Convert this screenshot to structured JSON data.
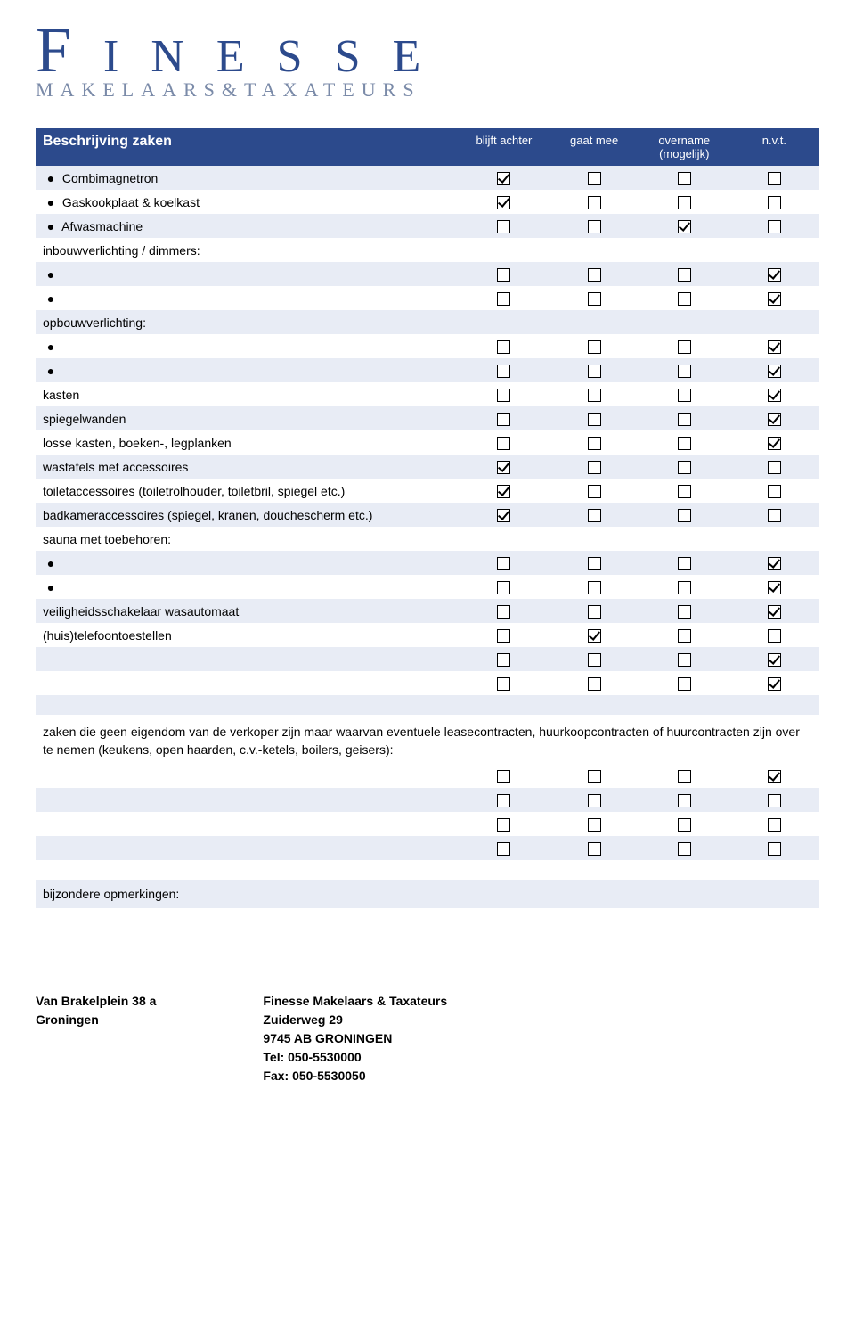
{
  "logo": {
    "main": "FINESSE",
    "sub": "MAKELAARS&TAXATEURS"
  },
  "header": {
    "title": "Beschrijving zaken",
    "col1": "blijft achter",
    "col2": "gaat mee",
    "col3_line1": "overname",
    "col3_line2": "(mogelijk)",
    "col4": "n.v.t."
  },
  "rows": [
    {
      "label": "Combimagnetron",
      "bullet": true,
      "shade": "light",
      "checks": [
        1,
        0,
        0,
        0
      ]
    },
    {
      "label": "Gaskookplaat & koelkast",
      "bullet": true,
      "shade": "white",
      "checks": [
        1,
        0,
        0,
        0
      ]
    },
    {
      "label": "Afwasmachine",
      "bullet": true,
      "shade": "light",
      "checks": [
        0,
        0,
        1,
        0
      ]
    },
    {
      "label": "inbouwverlichting / dimmers:",
      "bullet": false,
      "shade": "white",
      "checks": null
    },
    {
      "label": "",
      "bullet": true,
      "shade": "light",
      "checks": [
        0,
        0,
        0,
        1
      ]
    },
    {
      "label": "",
      "bullet": true,
      "shade": "white",
      "checks": [
        0,
        0,
        0,
        1
      ]
    },
    {
      "label": "opbouwverlichting:",
      "bullet": false,
      "shade": "light",
      "checks": null
    },
    {
      "label": "",
      "bullet": true,
      "shade": "white",
      "checks": [
        0,
        0,
        0,
        1
      ]
    },
    {
      "label": "",
      "bullet": true,
      "shade": "light",
      "checks": [
        0,
        0,
        0,
        1
      ]
    },
    {
      "label": "kasten",
      "bullet": false,
      "shade": "white",
      "checks": [
        0,
        0,
        0,
        1
      ]
    },
    {
      "label": "spiegelwanden",
      "bullet": false,
      "shade": "light",
      "checks": [
        0,
        0,
        0,
        1
      ]
    },
    {
      "label": "losse kasten, boeken-, legplanken",
      "bullet": false,
      "shade": "white",
      "checks": [
        0,
        0,
        0,
        1
      ]
    },
    {
      "label": "wastafels met accessoires",
      "bullet": false,
      "shade": "light",
      "checks": [
        1,
        0,
        0,
        0
      ]
    },
    {
      "label": "toiletaccessoires (toiletrolhouder, toiletbril, spiegel etc.)",
      "bullet": false,
      "shade": "white",
      "checks": [
        1,
        0,
        0,
        0
      ]
    },
    {
      "label": "badkameraccessoires (spiegel, kranen, douchescherm etc.)",
      "bullet": false,
      "shade": "light",
      "checks": [
        1,
        0,
        0,
        0
      ]
    },
    {
      "label": "sauna met toebehoren:",
      "bullet": false,
      "shade": "white",
      "checks": null
    },
    {
      "label": "",
      "bullet": true,
      "shade": "light",
      "checks": [
        0,
        0,
        0,
        1
      ]
    },
    {
      "label": "",
      "bullet": true,
      "shade": "white",
      "checks": [
        0,
        0,
        0,
        1
      ]
    },
    {
      "label": "veiligheidsschakelaar wasautomaat",
      "bullet": false,
      "shade": "light",
      "checks": [
        0,
        0,
        0,
        1
      ]
    },
    {
      "label": "(huis)telefoontoestellen",
      "bullet": false,
      "shade": "white",
      "checks": [
        0,
        1,
        0,
        0
      ]
    },
    {
      "label": "",
      "bullet": false,
      "shade": "light",
      "checks": [
        0,
        0,
        0,
        1
      ]
    },
    {
      "label": "",
      "bullet": false,
      "shade": "white",
      "checks": [
        0,
        0,
        0,
        1
      ]
    }
  ],
  "note": "zaken die geen eigendom van de verkoper zijn maar waarvan eventuele leasecontracten, huurkoopcontracten of huurcontracten zijn over te nemen (keukens, open haarden, c.v.-ketels, boilers, geisers):",
  "note_rows": [
    {
      "shade": "white",
      "checks": [
        0,
        0,
        0,
        1
      ]
    },
    {
      "shade": "light",
      "checks": [
        0,
        0,
        0,
        0
      ]
    },
    {
      "shade": "white",
      "checks": [
        0,
        0,
        0,
        0
      ]
    },
    {
      "shade": "light",
      "checks": [
        0,
        0,
        0,
        0
      ]
    }
  ],
  "remarks_label": "bijzondere opmerkingen:",
  "footer": {
    "left": {
      "line1": "Van Brakelplein 38 a",
      "line2": "Groningen"
    },
    "right": {
      "line1": "Finesse Makelaars & Taxateurs",
      "line2": "Zuiderweg 29",
      "line3": "9745 AB GRONINGEN",
      "line4": "Tel: 050-5530000",
      "line5": "Fax: 050-5530050"
    }
  }
}
